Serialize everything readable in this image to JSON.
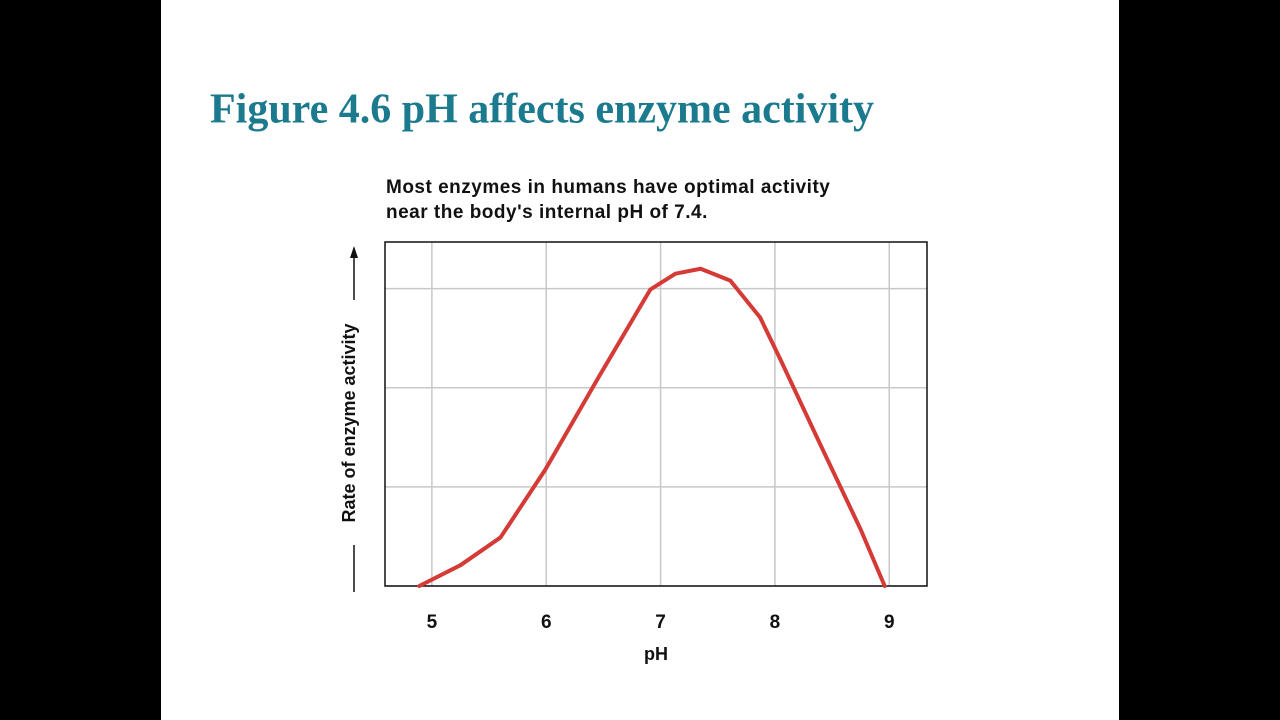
{
  "chart_data": {
    "type": "line",
    "title": "Figure 4.6 pH affects enzyme activity",
    "subtitle": [
      "Most enzymes in humans have optimal activity",
      "near the body's internal pH of 7.4."
    ],
    "x_label": "pH",
    "y_label": "Rate of enzyme activity",
    "x": [
      4.89,
      5.25,
      5.6,
      5.99,
      6.47,
      6.91,
      7.13,
      7.35,
      7.61,
      7.87,
      8.05,
      8.4,
      8.75,
      8.96
    ],
    "series": [
      {
        "color": "#d43a36",
        "values": [
          0,
          0.21,
          0.49,
          1.17,
          2.13,
          2.99,
          3.15,
          3.2,
          3.08,
          2.71,
          2.28,
          1.42,
          0.57,
          0
        ]
      }
    ],
    "xlim": [
      4.59,
      9.33
    ],
    "xticks": [
      5,
      6,
      7,
      8,
      9
    ],
    "ylim": [
      0,
      3.47
    ],
    "yticks": [
      0,
      1,
      2,
      3
    ],
    "grid": true
  }
}
